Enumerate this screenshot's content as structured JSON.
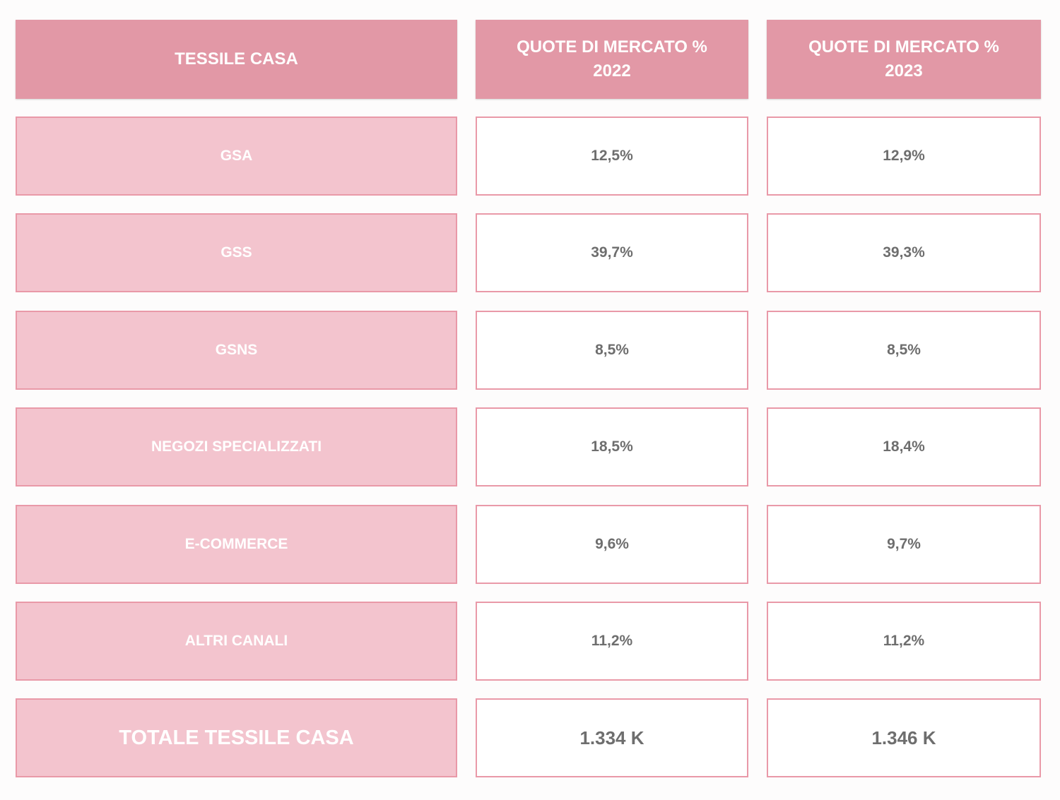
{
  "chart_data": {
    "type": "table",
    "columns": [
      "TESSILE CASA",
      "QUOTE DI MERCATO %\n2022",
      "QUOTE DI MERCATO %\n2023"
    ],
    "rows": [
      {
        "label": "GSA",
        "v2022": "12,5%",
        "v2023": "12,9%"
      },
      {
        "label": "GSS",
        "v2022": "39,7%",
        "v2023": "39,3%"
      },
      {
        "label": "GSNS",
        "v2022": "8,5%",
        "v2023": "8,5%"
      },
      {
        "label": "NEGOZI SPECIALIZZATI",
        "v2022": "18,5%",
        "v2023": "18,4%"
      },
      {
        "label": "E-COMMERCE",
        "v2022": "9,6%",
        "v2023": "9,7%"
      },
      {
        "label": "ALTRI CANALI",
        "v2022": "11,2%",
        "v2023": "11,2%"
      },
      {
        "label": "TOTALE TESSILE CASA",
        "v2022": "1.334 K",
        "v2023": "1.346 K"
      }
    ]
  },
  "colors": {
    "header_bg": "#e298a6",
    "label_bg": "#f3c4ce",
    "border": "#e999a8",
    "value_text": "#6e6e6e",
    "label_text": "#ffffff"
  }
}
